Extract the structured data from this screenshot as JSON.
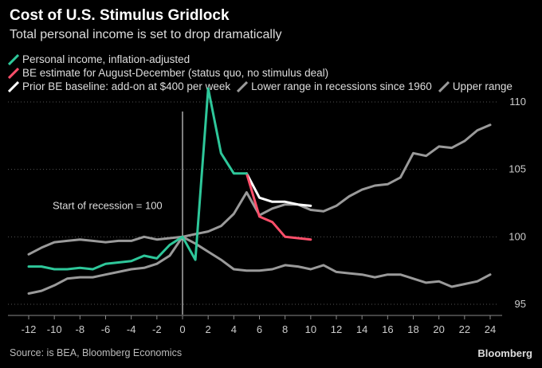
{
  "header": {
    "title": "Cost of U.S. Stimulus Gridlock",
    "subtitle": "Total personal income is set to drop dramatically"
  },
  "footer": {
    "source": "Source: is BEA, Bloomberg Economics",
    "brand": "Bloomberg"
  },
  "colors": {
    "personal_income": "#2ec79a",
    "be_estimate": "#ff4f6a",
    "prior_baseline": "#ffffff",
    "lower_range": "#9a9a9a",
    "upper_range": "#9a9a9a",
    "grid": "#555555",
    "axis_text": "#cccccc"
  },
  "chart_data": {
    "type": "line",
    "title": "Cost of U.S. Stimulus Gridlock",
    "subtitle": "Total personal income is set to drop dramatically",
    "xlim": [
      -13,
      25
    ],
    "ylim": [
      94,
      111
    ],
    "x_ticks": [
      -12,
      -10,
      -8,
      -6,
      -4,
      -2,
      0,
      2,
      4,
      6,
      8,
      10,
      12,
      14,
      16,
      18,
      20,
      22,
      24
    ],
    "y_ticks": [
      95,
      100,
      105,
      110
    ],
    "grid": "horizontal dotted",
    "legend_placement": "top-left",
    "annotation": {
      "text": "Start of recession = 100",
      "x": 0,
      "y": 102.3
    },
    "series": [
      {
        "name": "Personal income, inflation-adjusted",
        "color": "#2ec79a",
        "x": [
          -12,
          -11,
          -10,
          -9,
          -8,
          -7,
          -6,
          -5,
          -4,
          -3,
          -2,
          -1,
          0,
          1,
          2,
          3,
          4,
          5
        ],
        "y": [
          97.8,
          97.8,
          97.6,
          97.6,
          97.7,
          97.6,
          98.0,
          98.1,
          98.2,
          98.6,
          98.4,
          99.4,
          100.0,
          98.3,
          111.0,
          106.2,
          104.7,
          104.7
        ]
      },
      {
        "name": "BE estimate for August-December (status quo, no stimulus deal)",
        "color": "#ff4f6a",
        "x": [
          5,
          6,
          7,
          8,
          9,
          10
        ],
        "y": [
          104.7,
          101.5,
          101.1,
          100.0,
          99.9,
          99.8
        ]
      },
      {
        "name": "Prior BE baseline: add-on at $400 per week",
        "color": "#ffffff",
        "x": [
          5,
          6,
          7,
          8,
          9,
          10
        ],
        "y": [
          104.7,
          102.9,
          102.6,
          102.6,
          102.4,
          102.3
        ]
      },
      {
        "name": "Lower range in recessions since 1960",
        "color": "#9a9a9a",
        "x": [
          -12,
          -11,
          -10,
          -9,
          -8,
          -7,
          -6,
          -5,
          -4,
          -3,
          -2,
          -1,
          0,
          1,
          2,
          3,
          4,
          5,
          6,
          7,
          8,
          9,
          10,
          11,
          12,
          13,
          14,
          15,
          16,
          17,
          18,
          19,
          20,
          21,
          22,
          23,
          24
        ],
        "y": [
          95.8,
          96.0,
          96.4,
          96.9,
          97.0,
          97.0,
          97.2,
          97.4,
          97.6,
          97.7,
          98.0,
          98.6,
          100.0,
          99.5,
          98.9,
          98.3,
          97.6,
          97.5,
          97.5,
          97.6,
          97.9,
          97.8,
          97.6,
          97.9,
          97.4,
          97.3,
          97.2,
          97.0,
          97.2,
          97.2,
          96.9,
          96.6,
          96.7,
          96.3,
          96.5,
          96.7,
          97.2
        ]
      },
      {
        "name": "Upper range",
        "color": "#9a9a9a",
        "x": [
          -12,
          -11,
          -10,
          -9,
          -8,
          -7,
          -6,
          -5,
          -4,
          -3,
          -2,
          -1,
          0,
          1,
          2,
          3,
          4,
          5,
          6,
          7,
          8,
          9,
          10,
          11,
          12,
          13,
          14,
          15,
          16,
          17,
          18,
          19,
          20,
          21,
          22,
          23,
          24
        ],
        "y": [
          98.7,
          99.2,
          99.6,
          99.7,
          99.8,
          99.7,
          99.6,
          99.7,
          99.7,
          100.0,
          99.8,
          99.9,
          100.0,
          100.2,
          100.4,
          100.8,
          101.7,
          103.3,
          101.6,
          102.1,
          102.4,
          102.4,
          102.0,
          101.9,
          102.3,
          103.0,
          103.5,
          103.8,
          103.9,
          104.4,
          106.2,
          106.0,
          106.7,
          106.6,
          107.1,
          107.9,
          108.3
        ]
      }
    ]
  }
}
